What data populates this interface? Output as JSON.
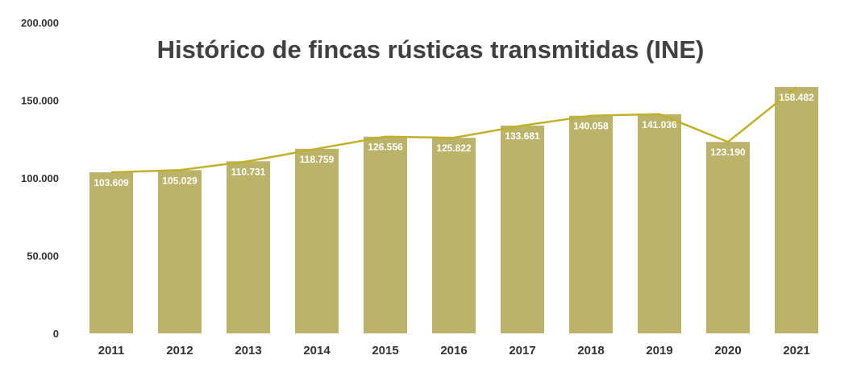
{
  "chart_data": {
    "type": "bar",
    "title": "Histórico de fincas rústicas transmitidas (INE)",
    "xlabel": "",
    "ylabel": "",
    "categories": [
      "2011",
      "2012",
      "2013",
      "2014",
      "2015",
      "2016",
      "2017",
      "2018",
      "2019",
      "2020",
      "2021"
    ],
    "values": [
      103609,
      105029,
      110731,
      118759,
      126556,
      125822,
      133681,
      140058,
      141036,
      123190,
      158482
    ],
    "data_labels": [
      "103.609",
      "105.029",
      "110.731",
      "118.759",
      "126.556",
      "125.822",
      "133.681",
      "140.058",
      "141.036",
      "123.190",
      "158.482"
    ],
    "ylim": [
      0,
      200000
    ],
    "yticks": [
      0,
      50000,
      100000,
      150000,
      200000
    ],
    "ytick_labels": [
      "0",
      "50.000",
      "100.000",
      "150.000",
      "200.000"
    ],
    "overlay_line": true,
    "grid": false,
    "legend": "none",
    "colors": {
      "bar": "#BAB369",
      "line": "#BFB12A",
      "text": "#333333",
      "title": "#404040",
      "label": "#ffffff"
    }
  }
}
